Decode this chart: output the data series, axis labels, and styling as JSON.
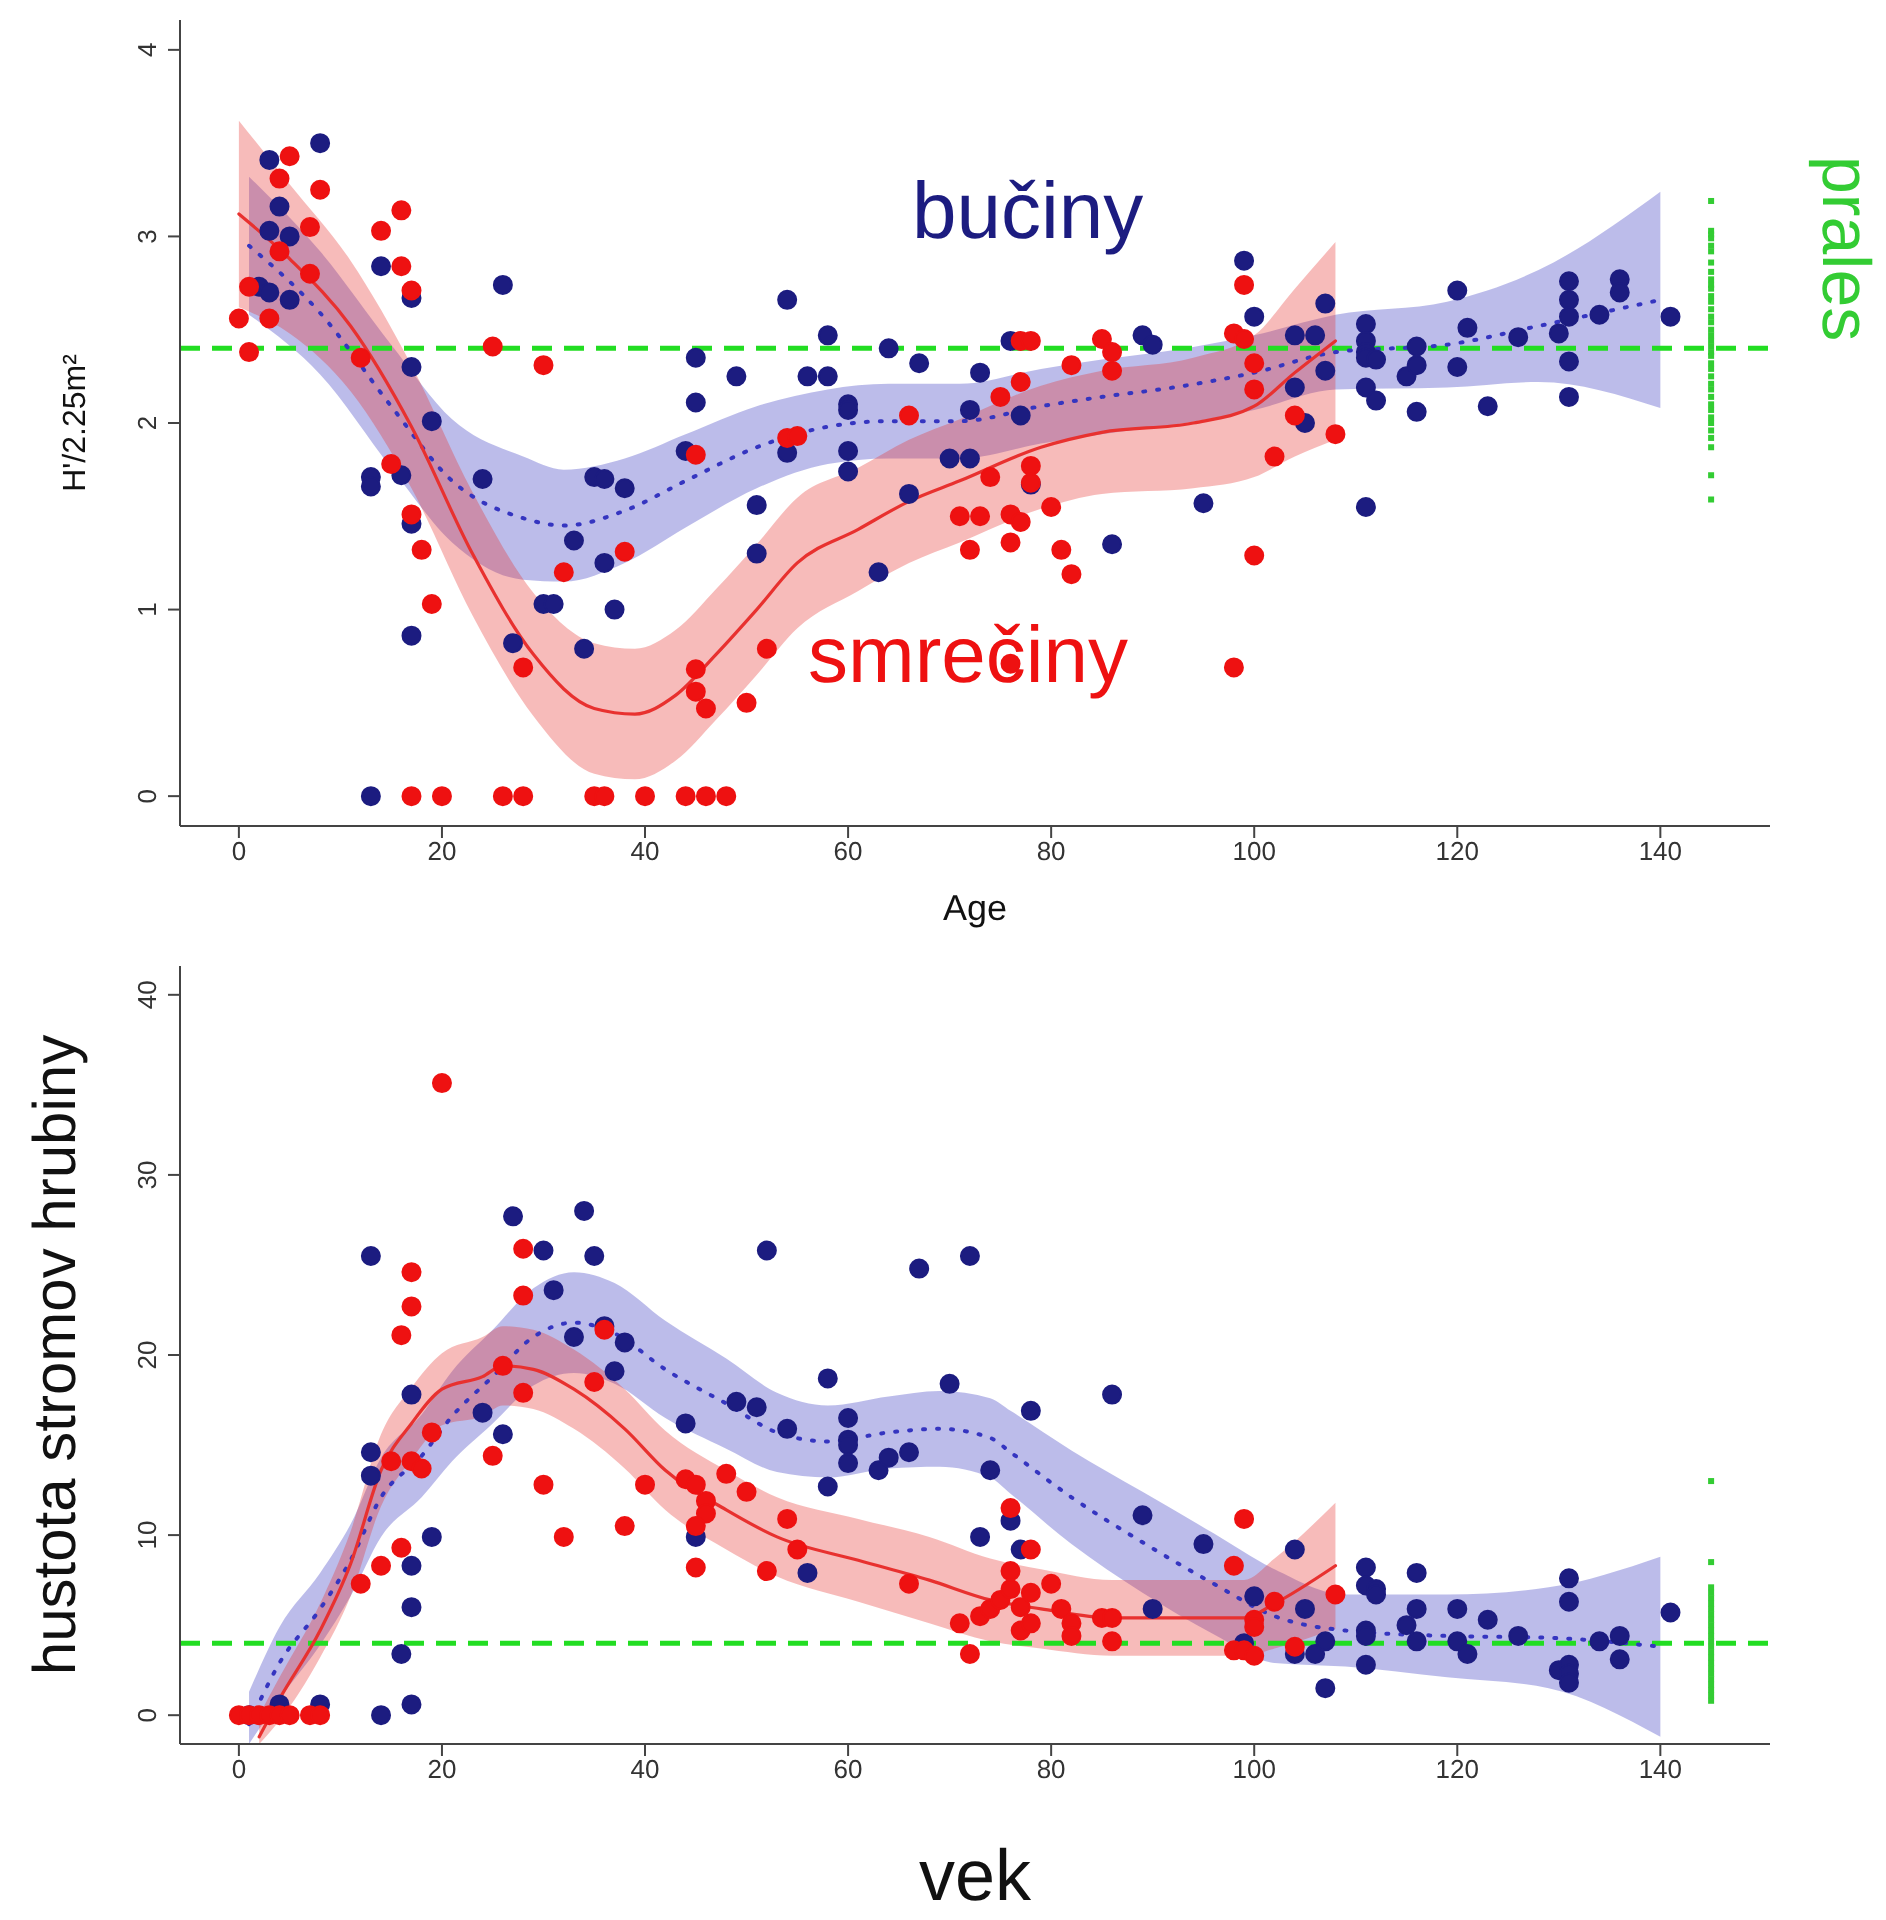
{
  "chart_data": [
    {
      "type": "scatter",
      "xlabel": "Age",
      "ylabel": "H'/2.25m²",
      "xlim": [
        -5.8,
        150.8
      ],
      "ylim": [
        -0.16,
        4.16
      ],
      "xticks": [
        0,
        20,
        40,
        60,
        80,
        100,
        120,
        140
      ],
      "yticks": [
        0,
        1,
        2,
        3,
        4
      ],
      "ref_lines": [
        {
          "axis": "y",
          "value": 2.4,
          "color": "#22dd22",
          "line_style": "dashed"
        }
      ],
      "series": [
        {
          "type": "line",
          "color": "#3535c0",
          "line_style": "dotted",
          "marker": "none",
          "x": [
            1,
            8,
            15,
            21,
            28,
            32,
            38,
            44,
            51,
            58,
            64,
            71,
            79,
            85,
            92,
            100,
            108,
            119,
            128,
            140
          ],
          "values": [
            2.95,
            2.59,
            2.09,
            1.69,
            1.49,
            1.45,
            1.53,
            1.69,
            1.87,
            1.98,
            2.01,
            2.01,
            2.09,
            2.14,
            2.19,
            2.27,
            2.38,
            2.42,
            2.52,
            2.66
          ],
          "lower": [
            2.58,
            2.26,
            1.76,
            1.36,
            1.16,
            1.15,
            1.25,
            1.44,
            1.65,
            1.78,
            1.81,
            1.81,
            1.89,
            1.94,
            1.99,
            2.07,
            2.18,
            2.19,
            2.22,
            2.08
          ],
          "upper": [
            3.32,
            2.92,
            2.42,
            2.02,
            1.82,
            1.75,
            1.81,
            1.94,
            2.09,
            2.18,
            2.21,
            2.21,
            2.29,
            2.34,
            2.39,
            2.47,
            2.58,
            2.65,
            2.82,
            3.24
          ]
        },
        {
          "type": "line",
          "color": "#e8312f",
          "line_style": "solid",
          "marker": "none",
          "x": [
            0,
            5,
            11,
            17,
            23,
            29,
            35,
            39,
            43,
            47,
            51,
            55,
            61,
            66,
            71,
            79,
            85,
            94,
            100,
            104,
            108
          ],
          "values": [
            3.12,
            2.88,
            2.52,
            1.98,
            1.3,
            0.76,
            0.47,
            0.44,
            0.54,
            0.76,
            1.0,
            1.25,
            1.43,
            1.58,
            1.69,
            1.87,
            1.95,
            2.0,
            2.09,
            2.27,
            2.44
          ],
          "lower": [
            2.62,
            2.48,
            2.17,
            1.65,
            0.97,
            0.43,
            0.12,
            0.09,
            0.19,
            0.41,
            0.65,
            0.9,
            1.1,
            1.25,
            1.36,
            1.54,
            1.62,
            1.65,
            1.71,
            1.82,
            1.91
          ],
          "upper": [
            3.62,
            3.28,
            2.87,
            2.31,
            1.63,
            1.09,
            0.82,
            0.79,
            0.89,
            1.11,
            1.35,
            1.6,
            1.76,
            1.91,
            2.02,
            2.2,
            2.28,
            2.35,
            2.47,
            2.72,
            2.97
          ]
        },
        {
          "type": "scatter",
          "name": "bučiny",
          "color": "#1c1c80",
          "marker": "circle",
          "x": [
            3,
            4,
            3,
            5,
            2,
            3,
            5,
            8,
            13,
            13,
            14,
            16,
            17,
            17,
            17,
            17,
            19,
            13,
            26,
            24,
            27,
            30,
            31,
            33,
            34,
            35,
            36,
            36,
            37,
            38,
            44,
            45,
            45,
            49,
            51,
            51,
            54,
            54,
            56,
            58,
            58,
            60,
            60,
            60,
            60,
            63,
            64,
            66,
            67,
            70,
            72,
            72,
            73,
            76,
            77,
            78,
            86,
            89,
            90,
            95,
            99,
            100,
            104,
            106,
            107,
            104,
            105,
            107,
            111,
            111,
            111,
            111,
            112,
            111,
            112,
            111,
            115,
            116,
            116,
            116,
            120,
            121,
            120,
            123,
            126,
            130,
            131,
            131,
            131,
            131,
            131,
            134,
            136,
            136,
            141
          ],
          "values": [
            3.41,
            3.16,
            3.03,
            3.0,
            2.73,
            2.7,
            2.66,
            3.5,
            1.71,
            1.66,
            2.84,
            1.72,
            2.67,
            2.3,
            1.46,
            0.86,
            2.01,
            0,
            2.74,
            1.7,
            0.82,
            1.03,
            1.03,
            1.37,
            0.79,
            1.71,
            1.7,
            1.25,
            1.0,
            1.65,
            1.85,
            2.35,
            2.11,
            2.25,
            1.56,
            1.3,
            2.66,
            1.84,
            2.25,
            2.25,
            2.47,
            2.1,
            2.07,
            1.85,
            1.74,
            1.2,
            2.4,
            1.62,
            2.32,
            1.81,
            2.07,
            1.81,
            2.27,
            2.44,
            2.04,
            1.67,
            1.35,
            2.47,
            2.42,
            1.57,
            2.87,
            2.57,
            2.47,
            2.47,
            2.64,
            2.19,
            2.0,
            2.28,
            2.53,
            2.44,
            2.38,
            2.35,
            2.34,
            2.19,
            2.12,
            1.55,
            2.25,
            2.31,
            2.41,
            2.06,
            2.71,
            2.51,
            2.3,
            2.09,
            2.46,
            2.48,
            2.76,
            2.66,
            2.57,
            2.33,
            2.14,
            2.58,
            2.77,
            2.7,
            2.57
          ]
        },
        {
          "type": "scatter",
          "name": "smrečiny",
          "color": "#ee1111",
          "marker": "circle",
          "x": [
            0,
            1,
            1,
            3,
            4,
            5,
            4,
            7,
            8,
            7,
            12,
            14,
            16,
            16,
            17,
            15,
            17,
            18,
            19,
            25,
            30,
            28,
            32,
            38,
            45,
            45,
            45,
            46,
            50,
            52,
            54,
            55,
            66,
            71,
            73,
            72,
            74,
            75,
            76,
            76,
            76,
            77,
            77,
            77,
            78,
            78,
            78,
            80,
            81,
            82,
            82,
            85,
            86,
            86,
            98,
            99,
            99,
            98,
            100,
            100,
            100,
            102,
            104,
            108,
            17,
            20,
            26,
            28,
            35,
            36,
            40,
            44,
            46,
            48
          ],
          "values": [
            2.56,
            2.38,
            2.73,
            2.56,
            3.31,
            3.43,
            2.92,
            3.05,
            3.25,
            2.8,
            2.35,
            3.03,
            3.14,
            2.84,
            2.71,
            1.78,
            1.51,
            1.32,
            1.03,
            2.41,
            2.31,
            0.69,
            1.2,
            1.31,
            1.83,
            0.68,
            0.56,
            0.47,
            0.5,
            0.79,
            1.92,
            1.93,
            2.04,
            1.5,
            1.5,
            1.32,
            1.71,
            2.14,
            1.51,
            1.36,
            0.71,
            1.47,
            2.22,
            2.44,
            2.44,
            1.77,
            1.68,
            1.55,
            1.32,
            1.19,
            2.31,
            2.45,
            2.38,
            2.28,
            2.48,
            2.45,
            2.74,
            0.69,
            1.29,
            2.32,
            2.18,
            1.82,
            2.04,
            1.94,
            0,
            0,
            0,
            0,
            0,
            0,
            0,
            0,
            0,
            0
          ]
        },
        {
          "type": "scatter",
          "name": "prales",
          "color": "#33cc33",
          "marker": "square",
          "x": [
            145,
            145,
            145,
            145,
            145,
            145,
            145,
            145,
            145,
            145,
            145,
            145,
            145,
            145,
            145,
            145,
            145,
            145,
            145,
            145,
            145,
            145,
            145,
            145,
            145,
            145,
            145,
            145,
            145,
            145,
            145,
            145,
            145,
            145,
            145,
            145,
            145
          ],
          "values": [
            3.19,
            3.03,
            3.01,
            2.99,
            2.95,
            2.92,
            2.86,
            2.81,
            2.77,
            2.74,
            2.72,
            2.68,
            2.65,
            2.61,
            2.57,
            2.54,
            2.5,
            2.47,
            2.44,
            2.41,
            2.38,
            2.36,
            2.32,
            2.29,
            2.25,
            2.21,
            2.18,
            2.14,
            2.1,
            2.07,
            2.03,
            2.0,
            1.96,
            1.92,
            1.87,
            1.72,
            1.59
          ]
        }
      ]
    },
    {
      "type": "scatter",
      "xlabel": "vek",
      "ylabel": "hustota stromov hrubiny",
      "xlim": [
        -5.8,
        150.8
      ],
      "ylim": [
        -1.6,
        41.6
      ],
      "xticks": [
        0,
        20,
        40,
        60,
        80,
        100,
        120,
        140
      ],
      "yticks": [
        0,
        10,
        20,
        30,
        40
      ],
      "ref_lines": [
        {
          "axis": "y",
          "value": 4,
          "color": "#22dd22",
          "line_style": "dashed"
        }
      ],
      "series": [
        {
          "type": "line",
          "color": "#3535c0",
          "line_style": "dotted",
          "marker": "none",
          "x": [
            1,
            4,
            8,
            11,
            14,
            18,
            21,
            25,
            29,
            33,
            37,
            42,
            48,
            53,
            58,
            64,
            69,
            74,
            76,
            82,
            89,
            96,
            102,
            109,
            119,
            129,
            140
          ],
          "values": [
            -0.5,
            2.9,
            5.9,
            8.6,
            12.1,
            14.4,
            16.6,
            18.8,
            21.0,
            21.8,
            21.2,
            19.2,
            17.3,
            15.7,
            15.2,
            15.7,
            15.9,
            15.4,
            14.6,
            12.1,
            9.6,
            7.3,
            5.5,
            4.7,
            4.4,
            4.3,
            3.8
          ],
          "lower": [
            -1.6,
            0.9,
            3.9,
            6.6,
            9.9,
            12.1,
            14.1,
            16.2,
            18.3,
            19.0,
            18.4,
            16.5,
            14.8,
            13.5,
            13.2,
            13.7,
            13.8,
            13.2,
            12.3,
            9.5,
            6.8,
            4.5,
            2.9,
            2.7,
            2.1,
            1.5,
            -1.2
          ],
          "upper": [
            1.3,
            4.9,
            7.9,
            10.6,
            14.3,
            16.7,
            19.1,
            21.4,
            23.7,
            24.6,
            24.0,
            21.9,
            19.8,
            17.9,
            17.2,
            17.7,
            18.0,
            17.6,
            16.9,
            14.7,
            12.4,
            10.1,
            8.1,
            6.7,
            6.7,
            7.1,
            8.8
          ]
        },
        {
          "type": "line",
          "color": "#e8312f",
          "line_style": "solid",
          "marker": "none",
          "x": [
            2,
            4,
            8,
            11,
            14,
            17,
            20,
            24,
            26,
            29,
            33,
            38,
            42,
            48,
            53,
            61,
            68,
            74,
            79,
            86,
            99,
            102,
            108
          ],
          "values": [
            -1.2,
            0.9,
            4.7,
            8.4,
            13.6,
            16.2,
            18.1,
            18.8,
            19.4,
            19.2,
            18.1,
            15.9,
            13.6,
            11.4,
            9.9,
            8.6,
            7.5,
            6.4,
            5.9,
            5.4,
            5.4,
            6.2,
            8.3
          ],
          "lower": [
            -1.6,
            -0.3,
            3.2,
            6.6,
            11.6,
            14.2,
            16.1,
            16.6,
            17.2,
            17.0,
            15.9,
            13.7,
            11.4,
            9.2,
            7.7,
            6.3,
            5.1,
            4.1,
            3.7,
            3.3,
            3.3,
            3.7,
            4.8
          ],
          "upper": [
            0.0,
            2.1,
            6.2,
            10.2,
            15.6,
            18.2,
            20.1,
            21.0,
            21.6,
            21.4,
            20.3,
            18.1,
            15.8,
            13.6,
            12.1,
            10.9,
            9.9,
            8.7,
            8.1,
            7.5,
            7.5,
            8.7,
            11.8
          ]
        },
        {
          "type": "scatter",
          "color": "#1c1c80",
          "marker": "circle",
          "x": [
            1,
            4,
            8,
            13,
            13,
            13,
            14,
            16,
            17,
            17,
            17,
            17,
            19,
            24,
            26,
            27,
            30,
            31,
            33,
            34,
            35,
            36,
            37,
            38,
            44,
            45,
            49,
            51,
            52,
            54,
            56,
            58,
            58,
            60,
            60,
            60,
            60,
            63,
            64,
            66,
            67,
            70,
            72,
            73,
            74,
            78,
            76,
            77,
            86,
            89,
            95,
            90,
            100,
            105,
            104,
            99,
            104,
            106,
            107,
            107,
            111,
            111,
            112,
            112,
            111,
            111,
            111,
            115,
            116,
            116,
            116,
            120,
            120,
            121,
            123,
            126,
            131,
            131,
            130,
            131,
            131,
            131,
            134,
            136,
            136,
            141
          ],
          "values": [
            0,
            0.6,
            0.6,
            25.5,
            14.6,
            13.3,
            0,
            3.4,
            17.8,
            8.3,
            6.0,
            0.6,
            9.9,
            16.8,
            15.6,
            27.7,
            25.8,
            23.6,
            21.0,
            28.0,
            25.5,
            21.6,
            19.1,
            20.7,
            16.2,
            9.9,
            17.4,
            17.1,
            25.8,
            15.9,
            7.9,
            12.7,
            18.7,
            16.5,
            15.3,
            15.0,
            14.0,
            13.6,
            14.3,
            14.6,
            24.8,
            18.4,
            25.5,
            9.9,
            13.6,
            16.9,
            10.8,
            9.2,
            17.8,
            11.1,
            9.5,
            5.9,
            6.6,
            5.9,
            9.2,
            4.0,
            3.4,
            3.4,
            4.1,
            1.5,
            8.2,
            7.2,
            7.0,
            6.7,
            4.7,
            4.4,
            2.8,
            5.0,
            7.9,
            5.9,
            4.1,
            5.9,
            4.1,
            3.4,
            5.3,
            4.4,
            7.6,
            6.3,
            2.5,
            2.8,
            2.3,
            1.8,
            4.1,
            4.4,
            3.1,
            5.7
          ]
        },
        {
          "type": "scatter",
          "color": "#ee1111",
          "marker": "circle",
          "x": [
            0,
            1,
            2,
            3,
            4,
            5,
            7,
            8,
            12,
            14,
            16,
            15,
            17,
            18,
            19,
            16,
            17,
            17,
            20,
            25,
            26,
            28,
            28,
            28,
            30,
            32,
            35,
            36,
            38,
            40,
            44,
            45,
            46,
            46,
            45,
            45,
            48,
            50,
            52,
            54,
            55,
            66,
            71,
            72,
            73,
            74,
            75,
            76,
            76,
            76,
            77,
            77,
            78,
            78,
            78,
            80,
            81,
            82,
            82,
            85,
            86,
            86,
            98,
            99,
            98,
            99,
            100,
            100,
            100,
            102,
            104,
            108
          ],
          "values": [
            0,
            0,
            0,
            0,
            0,
            0,
            0,
            0,
            7.3,
            8.3,
            9.3,
            14.1,
            14.1,
            13.7,
            15.7,
            21.1,
            22.7,
            24.6,
            35.1,
            14.4,
            19.4,
            17.9,
            23.3,
            25.9,
            12.8,
            9.9,
            18.5,
            21.4,
            10.5,
            12.8,
            13.1,
            12.8,
            11.9,
            11.2,
            10.5,
            8.2,
            13.4,
            12.4,
            8.0,
            10.9,
            9.2,
            7.3,
            5.1,
            3.4,
            5.5,
            5.9,
            6.4,
            7.0,
            8.0,
            11.5,
            6.0,
            4.7,
            5.1,
            9.2,
            6.8,
            7.3,
            5.9,
            5.1,
            4.4,
            5.4,
            5.4,
            4.1,
            8.3,
            10.9,
            3.6,
            3.6,
            3.3,
            5.3,
            4.9,
            6.3,
            3.8,
            6.7
          ]
        },
        {
          "type": "scatter",
          "color": "#33cc33",
          "marker": "square",
          "x": [
            145,
            145,
            145,
            145,
            145,
            145,
            145,
            145,
            145,
            145,
            145,
            145,
            145,
            145,
            145,
            145,
            145,
            145,
            145,
            145,
            145,
            145,
            145,
            145
          ],
          "values": [
            13.0,
            8.5,
            7.1,
            6.8,
            6.5,
            6.2,
            5.9,
            5.6,
            5.3,
            5.0,
            4.7,
            4.4,
            4.1,
            3.8,
            3.5,
            3.2,
            2.9,
            2.6,
            2.3,
            2.0,
            1.7,
            1.4,
            1.1,
            0.8
          ]
        }
      ]
    }
  ]
}
